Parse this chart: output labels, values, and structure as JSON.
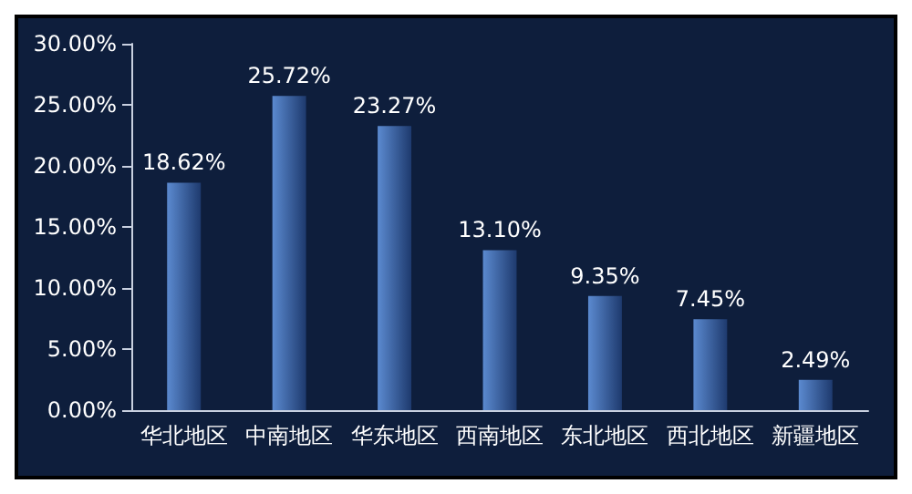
{
  "chart_data": {
    "type": "bar",
    "categories": [
      "华北地区",
      "中南地区",
      "华东地区",
      "西南地区",
      "东北地区",
      "西北地区",
      "新疆地区"
    ],
    "values": [
      18.62,
      25.72,
      23.27,
      13.1,
      9.35,
      7.45,
      2.49
    ],
    "value_labels": [
      "18.62%",
      "25.72%",
      "23.27%",
      "13.10%",
      "9.35%",
      "7.45%",
      "2.49%"
    ],
    "color": "#5b8ad0",
    "ylim": [
      0,
      30
    ],
    "yticks": [
      {
        "value": 0,
        "label": "0.00%"
      },
      {
        "value": 5,
        "label": "5.00%"
      },
      {
        "value": 10,
        "label": "10.00%"
      },
      {
        "value": 15,
        "label": "15.00%"
      },
      {
        "value": 20,
        "label": "20.00%"
      },
      {
        "value": 25,
        "label": "25.00%"
      },
      {
        "value": 30,
        "label": "30.00%"
      }
    ],
    "grid": false
  }
}
